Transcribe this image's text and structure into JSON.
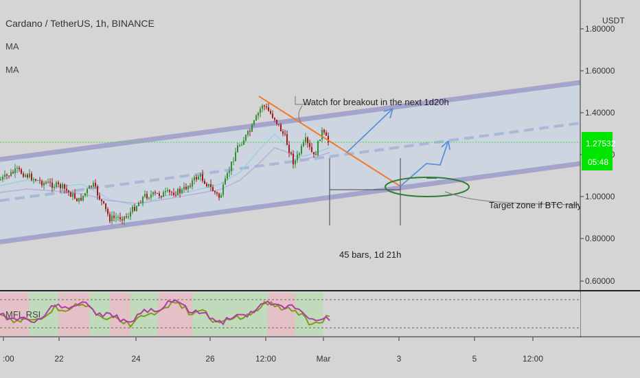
{
  "header": {
    "symbol_title": "Cardano / TetherUS, 1h, BINANCE",
    "indicator_1": "MA",
    "indicator_2": "MA"
  },
  "price_axis": {
    "currency": "USDT",
    "ticks": [
      "1.80000",
      "1.60000",
      "1.40000",
      "1.20000",
      "1.00000",
      "0.80000",
      "0.60000"
    ],
    "last_price": "1.27532",
    "countdown": "05:48",
    "last_price_color": "#00e600"
  },
  "time_axis": {
    "ticks": [
      ":00",
      "22",
      "24",
      "26",
      "12:00",
      "Mar",
      "3",
      "5",
      "12:00"
    ]
  },
  "annotations": {
    "breakout_note": "Watch for breakout in the next 1d20h",
    "target_note": "Target zone if BTC rally",
    "measure_label": "45 bars, 1d 21h"
  },
  "oscillator": {
    "label": "MFI_RSI"
  },
  "colors": {
    "channel": "#9a99c8",
    "trendline": "#f07a2a",
    "projection_arrow": "#5b8fd8",
    "target_ellipse": "#2e7d32",
    "candle_up": "#2f8f2f",
    "candle_down": "#a01c1c"
  }
}
